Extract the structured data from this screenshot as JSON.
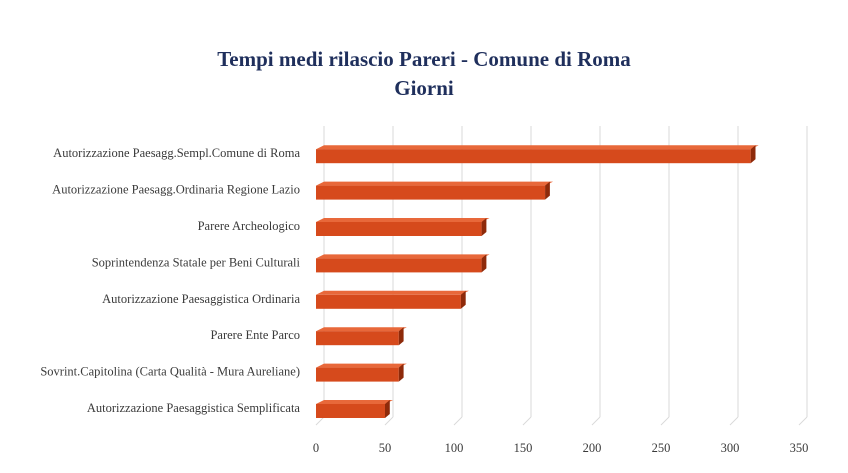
{
  "chart_data": {
    "type": "bar",
    "orientation": "horizontal",
    "style": "3d",
    "title": "Tempi medi rilascio Pareri - Comune di Roma",
    "subtitle": "Giorni",
    "categories": [
      "Autorizzazione Paesagg.Sempl.Comune di Roma",
      "Autorizzazione Paesagg.Ordinaria Regione Lazio",
      "Parere Archeologico",
      "Soprintendenza Statale per Beni Culturali",
      "Autorizzazione Paesaggistica Ordinaria",
      "Parere Ente Parco",
      "Sovrint.Capitolina (Carta Qualità - Mura Aureliane)",
      "Autorizzazione Paesaggistica Semplificata"
    ],
    "values": [
      315,
      166,
      120,
      120,
      105,
      60,
      60,
      50
    ],
    "xlim": [
      0,
      350
    ],
    "xticks": [
      "0",
      "50",
      "100",
      "150",
      "200",
      "250",
      "300",
      "350"
    ],
    "grid": true,
    "legend": "none",
    "colors": {
      "bar_front": "#d64a1c",
      "bar_top": "#e8683a",
      "bar_side": "#8e2a0a",
      "title": "#1f2f5c",
      "grid": "#d9d9d9"
    }
  }
}
